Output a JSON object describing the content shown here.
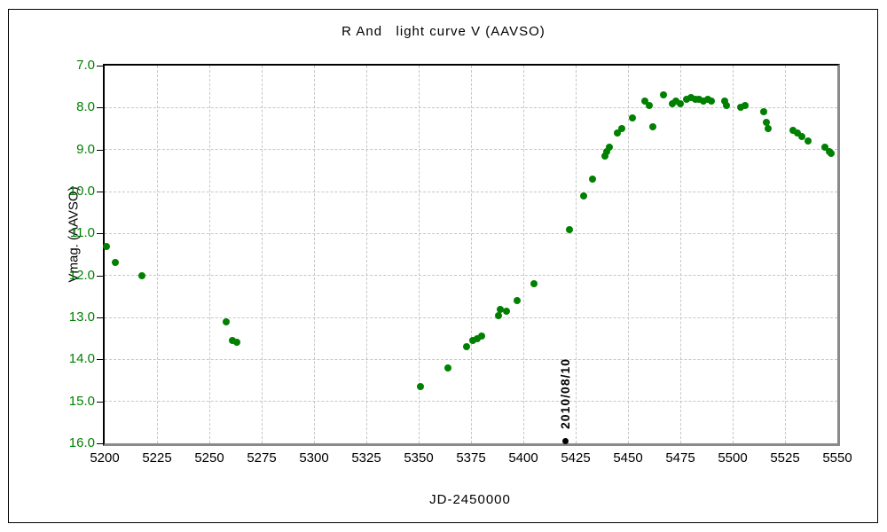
{
  "chart_data": {
    "type": "scatter",
    "title": "R And   light curve V (AAVSO)",
    "xlabel": "JD-2450000",
    "ylabel": "Vmag. (AAVSO)",
    "xlim": [
      5200,
      5550
    ],
    "ylim": [
      16.0,
      7.0
    ],
    "y_axis_inverted_magnitude_scale": true,
    "grid": "dashed",
    "legend": "none",
    "x_tick_labels": [
      "5200",
      "5225",
      "5250",
      "5275",
      "5300",
      "5325",
      "5350",
      "5375",
      "5400",
      "5425",
      "5450",
      "5475",
      "5500",
      "5525",
      "5550"
    ],
    "y_tick_labels": [
      "7.0",
      "8.0",
      "9.0",
      "10.0",
      "11.0",
      "12.0",
      "13.0",
      "14.0",
      "15.0",
      "16.0"
    ],
    "colors": {
      "points": "#008000",
      "y_axis_text": "#008000",
      "x_axis_text": "#000000",
      "grid": "#c6c6c6",
      "frame_dark": "#000000",
      "frame_shadow": "#8a8a8a",
      "annotation": "#000000"
    },
    "series": [
      {
        "name": "V",
        "marker": "circle",
        "color": "#008000",
        "points": [
          [
            5201,
            11.3
          ],
          [
            5205,
            11.7
          ],
          [
            5218,
            12.0
          ],
          [
            5258,
            13.1
          ],
          [
            5261,
            13.55
          ],
          [
            5263,
            13.6
          ],
          [
            5351,
            14.65
          ],
          [
            5364,
            14.2
          ],
          [
            5373,
            13.7
          ],
          [
            5376,
            13.55
          ],
          [
            5378,
            13.5
          ],
          [
            5380,
            13.45
          ],
          [
            5388,
            12.95
          ],
          [
            5389,
            12.8
          ],
          [
            5392,
            12.85
          ],
          [
            5397,
            12.6
          ],
          [
            5405,
            12.2
          ],
          [
            5422,
            10.9
          ],
          [
            5429,
            10.1
          ],
          [
            5433,
            9.7
          ],
          [
            5439,
            9.15
          ],
          [
            5440,
            9.05
          ],
          [
            5441,
            8.95
          ],
          [
            5445,
            8.6
          ],
          [
            5447,
            8.5
          ],
          [
            5452,
            8.25
          ],
          [
            5458,
            7.85
          ],
          [
            5460,
            7.95
          ],
          [
            5462,
            8.45
          ],
          [
            5467,
            7.7
          ],
          [
            5471,
            7.9
          ],
          [
            5473,
            7.85
          ],
          [
            5475,
            7.9
          ],
          [
            5478,
            7.8
          ],
          [
            5480,
            7.75
          ],
          [
            5482,
            7.8
          ],
          [
            5484,
            7.8
          ],
          [
            5486,
            7.85
          ],
          [
            5488,
            7.8
          ],
          [
            5490,
            7.85
          ],
          [
            5496,
            7.85
          ],
          [
            5497,
            7.95
          ],
          [
            5504,
            8.0
          ],
          [
            5506,
            7.95
          ],
          [
            5515,
            8.1
          ],
          [
            5516,
            8.35
          ],
          [
            5517,
            8.5
          ],
          [
            5529,
            8.55
          ],
          [
            5531,
            8.6
          ],
          [
            5533,
            8.7
          ],
          [
            5536,
            8.8
          ],
          [
            5544,
            8.95
          ],
          [
            5546,
            9.05
          ],
          [
            5547,
            9.1
          ]
        ]
      }
    ],
    "annotation": {
      "label": "2010/08/10",
      "x": 5420,
      "y": 15.95
    }
  }
}
